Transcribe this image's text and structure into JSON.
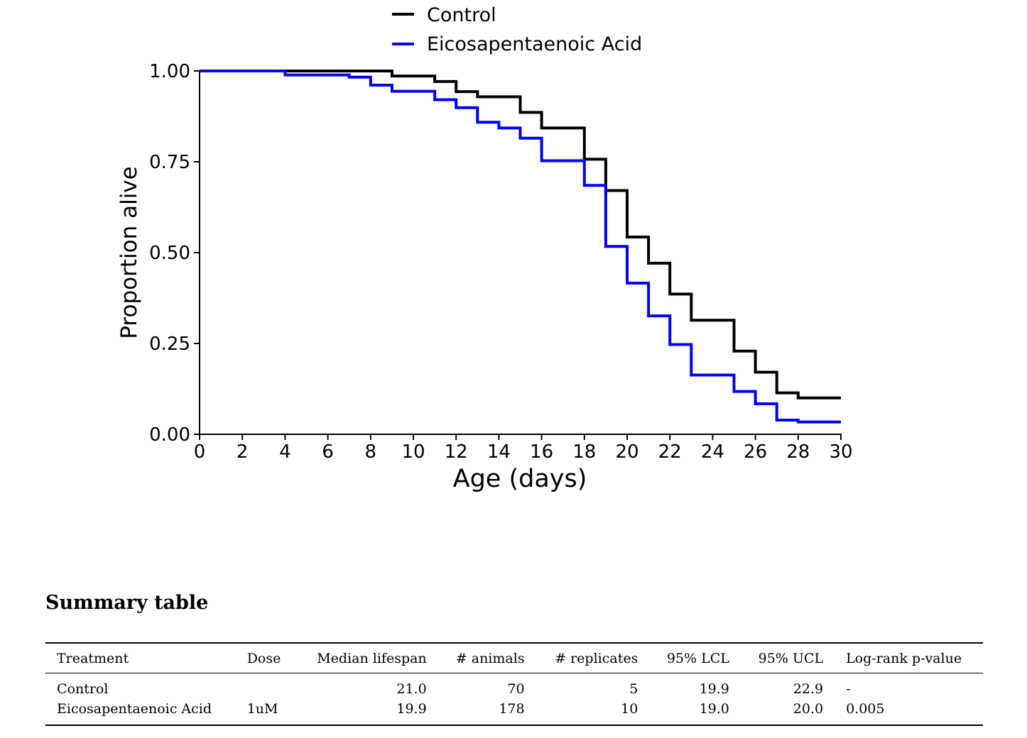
{
  "chart_data": {
    "type": "line",
    "step": true,
    "xlabel": "Age (days)",
    "ylabel": "Proportion alive",
    "xlim": [
      0,
      30
    ],
    "ylim": [
      0,
      1
    ],
    "xticks": [
      "0",
      "2",
      "4",
      "6",
      "8",
      "10",
      "12",
      "14",
      "16",
      "18",
      "20",
      "22",
      "24",
      "26",
      "28",
      "30"
    ],
    "yticks": [
      "0.00",
      "0.25",
      "0.50",
      "0.75",
      "1.00"
    ],
    "grid": false,
    "legend_position": "top-center",
    "series": [
      {
        "name": "Control",
        "color": "#000000",
        "x": [
          0,
          9,
          11,
          12,
          13,
          15,
          16,
          18,
          19,
          20,
          21,
          22,
          23,
          25,
          26,
          27,
          28,
          30
        ],
        "y": [
          1.0,
          0.986,
          0.971,
          0.943,
          0.929,
          0.886,
          0.843,
          0.757,
          0.671,
          0.543,
          0.471,
          0.386,
          0.314,
          0.229,
          0.171,
          0.114,
          0.1,
          0.1
        ]
      },
      {
        "name": "Eicosapentaenoic Acid",
        "color": "#0000ff",
        "x": [
          0,
          4,
          7,
          8,
          9,
          11,
          12,
          13,
          14,
          15,
          16,
          18,
          19,
          20,
          21,
          22,
          23,
          25,
          26,
          27,
          28,
          30
        ],
        "y": [
          1.0,
          0.989,
          0.983,
          0.961,
          0.944,
          0.921,
          0.899,
          0.859,
          0.843,
          0.815,
          0.753,
          0.685,
          0.517,
          0.416,
          0.326,
          0.247,
          0.163,
          0.118,
          0.084,
          0.039,
          0.034,
          0.034
        ]
      }
    ]
  },
  "summary": {
    "heading": "Summary table",
    "headers": {
      "treatment": "Treatment",
      "dose": "Dose",
      "median": "Median lifespan",
      "animals": "# animals",
      "replicates": "# replicates",
      "lcl": "95% LCL",
      "ucl": "95% UCL",
      "pvalue": "Log-rank p-value"
    },
    "rows": [
      {
        "treatment": "Control",
        "dose": "",
        "median": "21.0",
        "animals": "70",
        "replicates": "5",
        "lcl": "19.9",
        "ucl": "22.9",
        "pvalue": "-"
      },
      {
        "treatment": "Eicosapentaenoic Acid",
        "dose": "1uM",
        "median": "19.9",
        "animals": "178",
        "replicates": "10",
        "lcl": "19.0",
        "ucl": "20.0",
        "pvalue": "0.005"
      }
    ]
  }
}
